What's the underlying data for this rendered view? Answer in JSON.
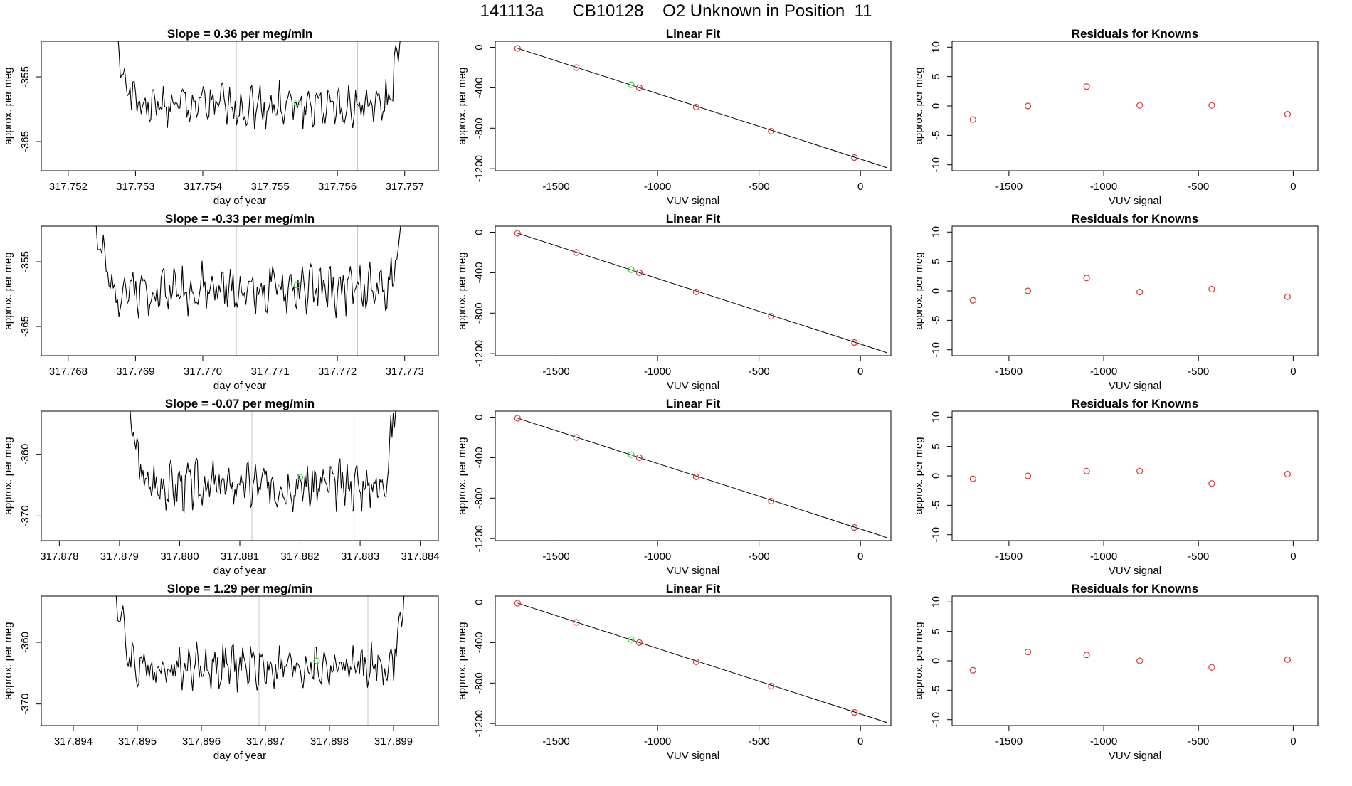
{
  "title": "141113a      CB10128    O2 Unknown in Position  11",
  "colors": {
    "line": "#000000",
    "frame": "#000000",
    "vline": "#c8c8c8",
    "known": "#d23c3c",
    "unknown": "#3ccf3c"
  },
  "chart_data": [
    {
      "type": "line",
      "row": 0,
      "col": 0,
      "title": "Slope =  0.36  per meg/min",
      "xlabel": "day of year",
      "ylabel": "approx. per meg",
      "xlim": [
        317.7516,
        317.7575
      ],
      "ylim": [
        -369.5,
        -349.5
      ],
      "xticks": [
        317.752,
        317.753,
        317.754,
        317.755,
        317.756,
        317.757
      ],
      "xtick_labels": [
        "317.752",
        "317.753",
        "317.754",
        "317.755",
        "317.756",
        "317.757"
      ],
      "yticks": [
        -355,
        -365
      ],
      "ytick_labels": [
        "-355",
        "-365"
      ],
      "series": {
        "x_start": 317.75255,
        "x_end": 317.75705,
        "n": 220,
        "base": -359.5,
        "amp": 2.2,
        "wall": 0.12,
        "seed": 1
      },
      "vlines": [
        317.7545,
        317.7563
      ],
      "marker": {
        "x": 317.7554,
        "y": -359.0
      }
    },
    {
      "type": "scatter",
      "row": 0,
      "col": 1,
      "title": "Linear Fit",
      "xlabel": "VUV signal",
      "ylabel": "approx. per meg",
      "xlim": [
        -1800,
        150
      ],
      "ylim": [
        -1220,
        60
      ],
      "xticks": [
        -1500,
        -1000,
        -500,
        0
      ],
      "xtick_labels": [
        "-1500",
        "-1000",
        "-500",
        "0"
      ],
      "yticks": [
        0,
        -400,
        -800,
        -1200
      ],
      "ytick_labels": [
        "0",
        "-400",
        "-800",
        "-1200"
      ],
      "points": {
        "x": [
          -1690,
          -1400,
          -1090,
          -810,
          -440,
          -30
        ],
        "y": [
          -10,
          -200,
          -400,
          -590,
          -830,
          -1090
        ]
      },
      "unknown": {
        "x": -1130,
        "y": -370
      },
      "fit": {
        "x1": -1690,
        "y1": -10,
        "x2": 130,
        "y2": -1190
      }
    },
    {
      "type": "scatter",
      "row": 0,
      "col": 2,
      "title": "Residuals for Knowns",
      "xlabel": "VUV signal",
      "ylabel": "approx. per meg",
      "xlim": [
        -1800,
        130
      ],
      "ylim": [
        -11,
        11
      ],
      "xticks": [
        -1500,
        -1000,
        -500,
        0
      ],
      "xtick_labels": [
        "-1500",
        "-1000",
        "-500",
        "0"
      ],
      "yticks": [
        10,
        5,
        0,
        -5,
        -10
      ],
      "ytick_labels": [
        "10",
        "5",
        "0",
        "-5",
        "-10"
      ],
      "points": {
        "x": [
          -1690,
          -1400,
          -1090,
          -810,
          -430,
          -30
        ],
        "y": [
          -2.3,
          0.0,
          3.3,
          0.1,
          0.1,
          -1.4
        ]
      }
    },
    {
      "type": "line",
      "row": 1,
      "col": 0,
      "title": "Slope =  -0.33  per meg/min",
      "xlabel": "day of year",
      "ylabel": "approx. per meg",
      "xlim": [
        317.7676,
        317.7735
      ],
      "ylim": [
        -369.5,
        -349.5
      ],
      "xticks": [
        317.768,
        317.769,
        317.77,
        317.771,
        317.772,
        317.773
      ],
      "xtick_labels": [
        "317.768",
        "317.769",
        "317.770",
        "317.771",
        "317.772",
        "317.773"
      ],
      "yticks": [
        -355,
        -365
      ],
      "ytick_labels": [
        "-355",
        "-365"
      ],
      "series": {
        "x_start": 317.76825,
        "x_end": 317.77305,
        "n": 230,
        "base": -359.3,
        "amp": 2.4,
        "wall": 0.1,
        "seed": 2
      },
      "vlines": [
        317.7705,
        317.7723
      ],
      "marker": {
        "x": 317.7714,
        "y": -358.6
      }
    },
    {
      "type": "scatter",
      "row": 1,
      "col": 1,
      "title": "Linear Fit",
      "xlabel": "VUV signal",
      "ylabel": "approx. per meg",
      "xlim": [
        -1800,
        150
      ],
      "ylim": [
        -1220,
        60
      ],
      "xticks": [
        -1500,
        -1000,
        -500,
        0
      ],
      "xtick_labels": [
        "-1500",
        "-1000",
        "-500",
        "0"
      ],
      "yticks": [
        0,
        -400,
        -800,
        -1200
      ],
      "ytick_labels": [
        "0",
        "-400",
        "-800",
        "-1200"
      ],
      "points": {
        "x": [
          -1690,
          -1400,
          -1090,
          -810,
          -440,
          -30
        ],
        "y": [
          -10,
          -200,
          -400,
          -590,
          -830,
          -1090
        ]
      },
      "unknown": {
        "x": -1130,
        "y": -370
      },
      "fit": {
        "x1": -1690,
        "y1": -10,
        "x2": 130,
        "y2": -1190
      }
    },
    {
      "type": "scatter",
      "row": 1,
      "col": 2,
      "title": "Residuals for Knowns",
      "xlabel": "VUV signal",
      "ylabel": "approx. per meg",
      "xlim": [
        -1800,
        130
      ],
      "ylim": [
        -11,
        11
      ],
      "xticks": [
        -1500,
        -1000,
        -500,
        0
      ],
      "xtick_labels": [
        "-1500",
        "-1000",
        "-500",
        "0"
      ],
      "yticks": [
        10,
        5,
        0,
        -5,
        -10
      ],
      "ytick_labels": [
        "10",
        "5",
        "0",
        "-5",
        "-10"
      ],
      "points": {
        "x": [
          -1690,
          -1400,
          -1090,
          -810,
          -430,
          -30
        ],
        "y": [
          -1.6,
          0.0,
          2.2,
          -0.2,
          0.3,
          -1.0
        ]
      }
    },
    {
      "type": "line",
      "row": 2,
      "col": 0,
      "title": "Slope =  -0.07  per meg/min",
      "xlabel": "day of year",
      "ylabel": "approx. per meg",
      "xlim": [
        317.8777,
        317.8843
      ],
      "ylim": [
        -374,
        -353
      ],
      "xticks": [
        317.878,
        317.879,
        317.88,
        317.881,
        317.882,
        317.883,
        317.884
      ],
      "xtick_labels": [
        "317.878",
        "317.879",
        "317.880",
        "317.881",
        "317.882",
        "317.883",
        "317.884"
      ],
      "yticks": [
        -360,
        -370
      ],
      "ytick_labels": [
        "-360",
        "-370"
      ],
      "series": {
        "x_start": 317.87905,
        "x_end": 317.88365,
        "n": 230,
        "base": -365.0,
        "amp": 2.5,
        "wall": 0.1,
        "seed": 3
      },
      "vlines": [
        317.8812,
        317.8829
      ],
      "marker": {
        "x": 317.882,
        "y": -363.7
      }
    },
    {
      "type": "scatter",
      "row": 2,
      "col": 1,
      "title": "Linear Fit",
      "xlabel": "VUV signal",
      "ylabel": "approx. per meg",
      "xlim": [
        -1800,
        150
      ],
      "ylim": [
        -1220,
        60
      ],
      "xticks": [
        -1500,
        -1000,
        -500,
        0
      ],
      "xtick_labels": [
        "-1500",
        "-1000",
        "-500",
        "0"
      ],
      "yticks": [
        0,
        -400,
        -800,
        -1200
      ],
      "ytick_labels": [
        "0",
        "-400",
        "-800",
        "-1200"
      ],
      "points": {
        "x": [
          -1690,
          -1400,
          -1090,
          -810,
          -440,
          -30
        ],
        "y": [
          -10,
          -200,
          -400,
          -590,
          -830,
          -1090
        ]
      },
      "unknown": {
        "x": -1130,
        "y": -370
      },
      "fit": {
        "x1": -1690,
        "y1": -10,
        "x2": 130,
        "y2": -1190
      }
    },
    {
      "type": "scatter",
      "row": 2,
      "col": 2,
      "title": "Residuals for Knowns",
      "xlabel": "VUV signal",
      "ylabel": "approx. per meg",
      "xlim": [
        -1800,
        130
      ],
      "ylim": [
        -11,
        11
      ],
      "xticks": [
        -1500,
        -1000,
        -500,
        0
      ],
      "xtick_labels": [
        "-1500",
        "-1000",
        "-500",
        "0"
      ],
      "yticks": [
        10,
        5,
        0,
        -5,
        -10
      ],
      "ytick_labels": [
        "10",
        "5",
        "0",
        "-5",
        "-10"
      ],
      "points": {
        "x": [
          -1690,
          -1400,
          -1090,
          -810,
          -430,
          -30
        ],
        "y": [
          -0.5,
          0.0,
          0.8,
          0.8,
          -1.3,
          0.3
        ]
      }
    },
    {
      "type": "line",
      "row": 3,
      "col": 0,
      "title": "Slope =  1.29  per meg/min",
      "xlabel": "day of year",
      "ylabel": "approx. per meg",
      "xlim": [
        317.8935,
        317.8997
      ],
      "ylim": [
        -373.5,
        -352.5
      ],
      "xticks": [
        317.894,
        317.895,
        317.896,
        317.897,
        317.898,
        317.899
      ],
      "xtick_labels": [
        "317.894",
        "317.895",
        "317.896",
        "317.897",
        "317.898",
        "317.899"
      ],
      "yticks": [
        -360,
        -370
      ],
      "ytick_labels": [
        "-360",
        "-370"
      ],
      "series": {
        "x_start": 317.89455,
        "x_end": 317.89925,
        "n": 230,
        "base": -364.0,
        "amp": 2.3,
        "wall": 0.1,
        "seed": 4
      },
      "vlines": [
        317.8969,
        317.8986
      ],
      "marker": {
        "x": 317.8978,
        "y": -363.0
      }
    },
    {
      "type": "scatter",
      "row": 3,
      "col": 1,
      "title": "Linear Fit",
      "xlabel": "VUV signal",
      "ylabel": "approx. per meg",
      "xlim": [
        -1800,
        150
      ],
      "ylim": [
        -1220,
        60
      ],
      "xticks": [
        -1500,
        -1000,
        -500,
        0
      ],
      "xtick_labels": [
        "-1500",
        "-1000",
        "-500",
        "0"
      ],
      "yticks": [
        0,
        -400,
        -800,
        -1200
      ],
      "ytick_labels": [
        "0",
        "-400",
        "-800",
        "-1200"
      ],
      "points": {
        "x": [
          -1690,
          -1400,
          -1090,
          -810,
          -440,
          -30
        ],
        "y": [
          -10,
          -200,
          -400,
          -590,
          -830,
          -1090
        ]
      },
      "unknown": {
        "x": -1130,
        "y": -370
      },
      "fit": {
        "x1": -1690,
        "y1": -10,
        "x2": 130,
        "y2": -1190
      }
    },
    {
      "type": "scatter",
      "row": 3,
      "col": 2,
      "title": "Residuals for Knowns",
      "xlabel": "VUV signal",
      "ylabel": "approx. per meg",
      "xlim": [
        -1800,
        130
      ],
      "ylim": [
        -11,
        11
      ],
      "xticks": [
        -1500,
        -1000,
        -500,
        0
      ],
      "xtick_labels": [
        "-1500",
        "-1000",
        "-500",
        "0"
      ],
      "yticks": [
        10,
        5,
        0,
        -5,
        -10
      ],
      "ytick_labels": [
        "10",
        "5",
        "0",
        "-5",
        "-10"
      ],
      "points": {
        "x": [
          -1690,
          -1400,
          -1090,
          -810,
          -430,
          -30
        ],
        "y": [
          -1.6,
          1.5,
          1.0,
          0.0,
          -1.1,
          0.2
        ]
      }
    }
  ]
}
